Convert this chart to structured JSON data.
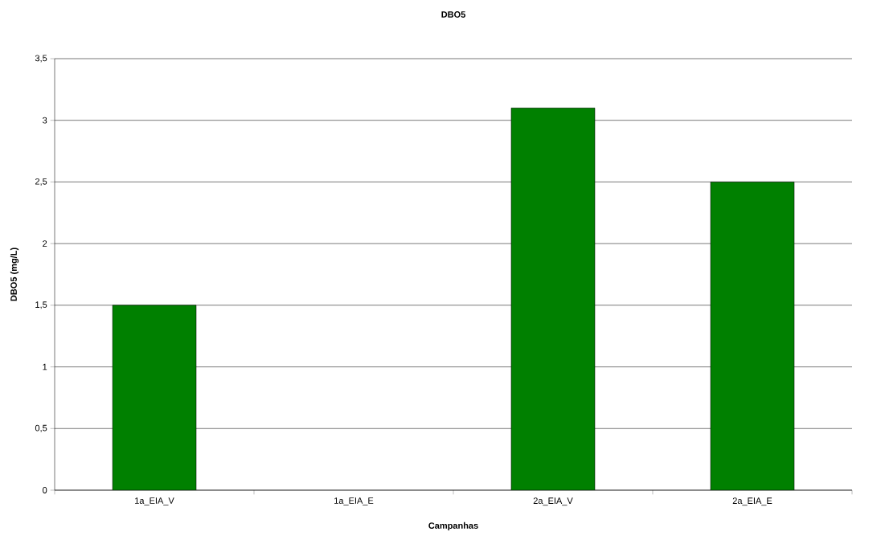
{
  "chart_data": {
    "type": "bar",
    "title": "DBO5",
    "xlabel": "Campanhas",
    "ylabel": "DBO5 (mg/L)",
    "categories": [
      "1a_EIA_V",
      "1a_EIA_E",
      "2a_EIA_V",
      "2a_EIA_E"
    ],
    "values": [
      1.5,
      null,
      3.1,
      2.5
    ],
    "color": "#008000",
    "ylim": [
      0,
      3.5
    ],
    "yticks": [
      0,
      {
        "value": 0.5,
        "label": "0,5"
      },
      1,
      {
        "value": 1.5,
        "label": "1,5"
      },
      2,
      {
        "value": 2.5,
        "label": "2,5"
      },
      3,
      {
        "value": 3.5,
        "label": "3,5"
      }
    ],
    "grid": "y"
  }
}
